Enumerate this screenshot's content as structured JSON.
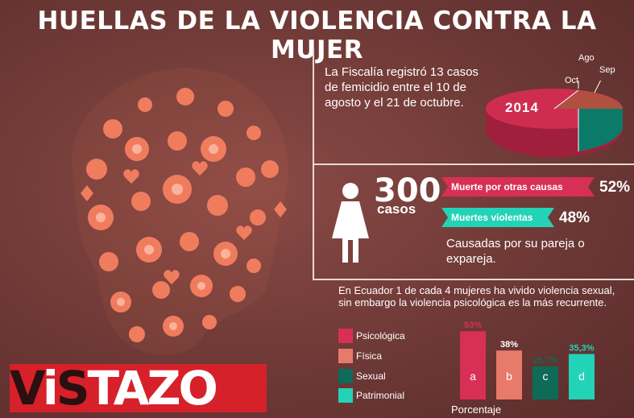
{
  "title": "HUELLAS DE LA VIOLENCIA CONTRA LA MUJER",
  "femicide_text": "La Fiscalía registró 13 casos de femicidio entre el 10 de agosto y el 21 de octubre.",
  "pie_labels": {
    "year": "2014",
    "oct": "Oct",
    "ago": "Ago",
    "sep": "Sep"
  },
  "deaths": {
    "count": "300",
    "unit": "casos",
    "other_label": "Muerte por otras causas",
    "other_pct": "52%",
    "violent_label": "Muertes violentas",
    "violent_pct": "48%",
    "note": "Causadas por su pareja o expareja."
  },
  "ecuador_text": "En Ecuador 1 de cada 4 mujeres ha vivido violencia sexual, sin embargo la violencia psicológica es la más recurrente.",
  "legend": [
    "Psicológica",
    "Física",
    "Sexual",
    "Patrimonial"
  ],
  "colors": {
    "psico": "#d82f56",
    "fisica": "#e87a6a",
    "sexual": "#0d6b58",
    "patrimonial": "#22d3b7",
    "pie_main": "#cf2d50",
    "pie_brown": "#b05040",
    "pie_teal": "#0b7a68"
  },
  "logo": "VISTAZO",
  "chart_data": {
    "type": "bar",
    "categories": [
      "a",
      "b",
      "c",
      "d"
    ],
    "series_names": [
      "Psicológica",
      "Física",
      "Sexual",
      "Patrimonial"
    ],
    "values": [
      53,
      38,
      25.7,
      35.3
    ],
    "value_labels": [
      "53%",
      "38%",
      "25,7%",
      "35,3%"
    ],
    "xlabel": "Porcentaje",
    "ylim": [
      0,
      60
    ]
  }
}
